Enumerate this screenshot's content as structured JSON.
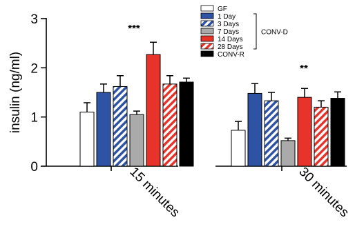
{
  "chart_data": {
    "type": "bar",
    "ylabel": "insulin (ng/ml)",
    "ylim": [
      0,
      3
    ],
    "yticks": [
      "0",
      "1",
      "2",
      "3"
    ],
    "categories": [
      "15 minutes",
      "30 minutes"
    ],
    "significance": [
      "***",
      "**"
    ],
    "series": [
      {
        "name": "GF",
        "color": "#ffffff",
        "pattern": "solid",
        "values": [
          1.1,
          0.73
        ],
        "errors": [
          0.19,
          0.18
        ]
      },
      {
        "name": "1 Day",
        "color": "#2e52a4",
        "pattern": "solid",
        "values": [
          1.5,
          1.48
        ],
        "errors": [
          0.17,
          0.2
        ]
      },
      {
        "name": "3 Days",
        "color": "#2e52a4",
        "pattern": "hatched",
        "values": [
          1.62,
          1.33
        ],
        "errors": [
          0.22,
          0.17
        ]
      },
      {
        "name": "7 Days",
        "color": "#aaaaaa",
        "pattern": "solid",
        "values": [
          1.05,
          0.52
        ],
        "errors": [
          0.07,
          0.05
        ]
      },
      {
        "name": "14 Days",
        "color": "#e8332a",
        "pattern": "solid",
        "values": [
          2.27,
          1.4
        ],
        "errors": [
          0.25,
          0.18
        ]
      },
      {
        "name": "28 Days",
        "color": "#e8332a",
        "pattern": "hatched",
        "values": [
          1.67,
          1.2
        ],
        "errors": [
          0.17,
          0.13
        ]
      },
      {
        "name": "CONV-R",
        "color": "#000000",
        "pattern": "solid",
        "values": [
          1.71,
          1.38
        ],
        "errors": [
          0.08,
          0.13
        ]
      }
    ],
    "legend_group_label": "CONV-D",
    "legend_placement": "top-right",
    "grid": false
  }
}
